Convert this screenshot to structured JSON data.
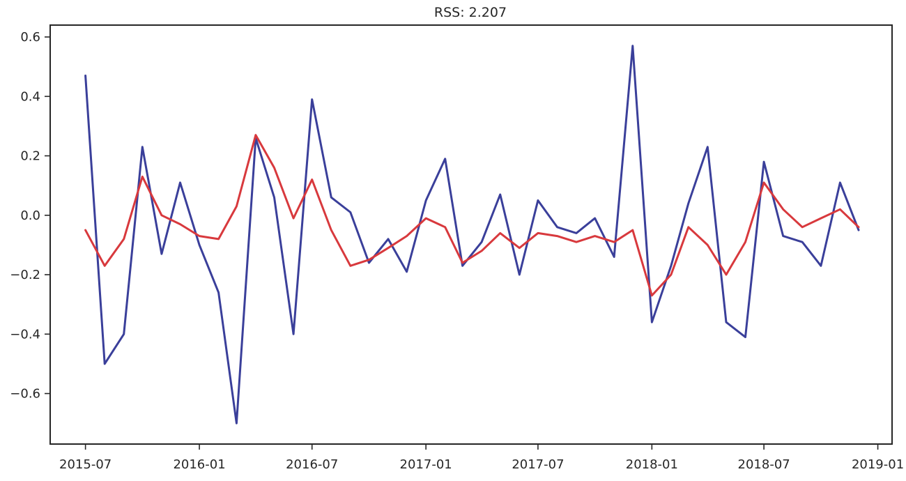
{
  "chart_data": {
    "type": "line",
    "title": "RSS: 2.207",
    "xlabel": "",
    "ylabel": "",
    "x_ticks": [
      "2015-07",
      "2016-01",
      "2016-07",
      "2017-01",
      "2017-07",
      "2018-01",
      "2018-07",
      "2019-01"
    ],
    "y_ticks": [
      "−0.6",
      "−0.4",
      "−0.2",
      "0.0",
      "0.2",
      "0.4",
      "0.6"
    ],
    "y_tick_values": [
      -0.6,
      -0.4,
      -0.2,
      0.0,
      0.2,
      0.4,
      0.6
    ],
    "xlim": [
      "2015-05-05",
      "2019-01-24"
    ],
    "ylim": [
      -0.77,
      0.64
    ],
    "grid": false,
    "x": [
      "2015-07",
      "2015-08",
      "2015-09",
      "2015-10",
      "2015-11",
      "2015-12",
      "2016-01",
      "2016-02",
      "2016-03",
      "2016-04",
      "2016-05",
      "2016-06",
      "2016-07",
      "2016-08",
      "2016-09",
      "2016-10",
      "2016-11",
      "2016-12",
      "2017-01",
      "2017-02",
      "2017-03",
      "2017-04",
      "2017-05",
      "2017-06",
      "2017-07",
      "2017-08",
      "2017-09",
      "2017-10",
      "2017-11",
      "2017-12",
      "2018-01",
      "2018-02",
      "2018-03",
      "2018-04",
      "2018-05",
      "2018-06",
      "2018-07",
      "2018-08",
      "2018-09",
      "2018-10",
      "2018-11",
      "2018-12"
    ],
    "series": [
      {
        "color": "#3a3f9a",
        "values": [
          0.47,
          -0.5,
          -0.4,
          0.23,
          -0.13,
          0.11,
          -0.1,
          -0.26,
          -0.7,
          0.26,
          0.06,
          -0.4,
          0.39,
          0.06,
          0.01,
          -0.16,
          -0.08,
          -0.19,
          0.05,
          0.19,
          -0.17,
          -0.09,
          0.07,
          -0.2,
          0.05,
          -0.04,
          -0.06,
          -0.01,
          -0.14,
          0.57,
          -0.36,
          -0.17,
          0.04,
          0.23,
          -0.36,
          -0.41,
          0.18,
          -0.07,
          -0.09,
          -0.17,
          0.11,
          -0.05
        ]
      },
      {
        "color": "#d8393d",
        "values": [
          -0.05,
          -0.17,
          -0.08,
          0.13,
          0.0,
          -0.03,
          -0.07,
          -0.08,
          0.03,
          0.27,
          0.16,
          -0.01,
          0.12,
          -0.05,
          -0.17,
          -0.15,
          -0.11,
          -0.07,
          -0.01,
          -0.04,
          -0.16,
          -0.12,
          -0.06,
          -0.11,
          -0.06,
          -0.07,
          -0.09,
          -0.07,
          -0.09,
          -0.05,
          -0.27,
          -0.2,
          -0.04,
          -0.1,
          -0.2,
          -0.09,
          0.11,
          0.02,
          -0.04,
          -0.01,
          0.02,
          -0.04
        ]
      }
    ]
  }
}
